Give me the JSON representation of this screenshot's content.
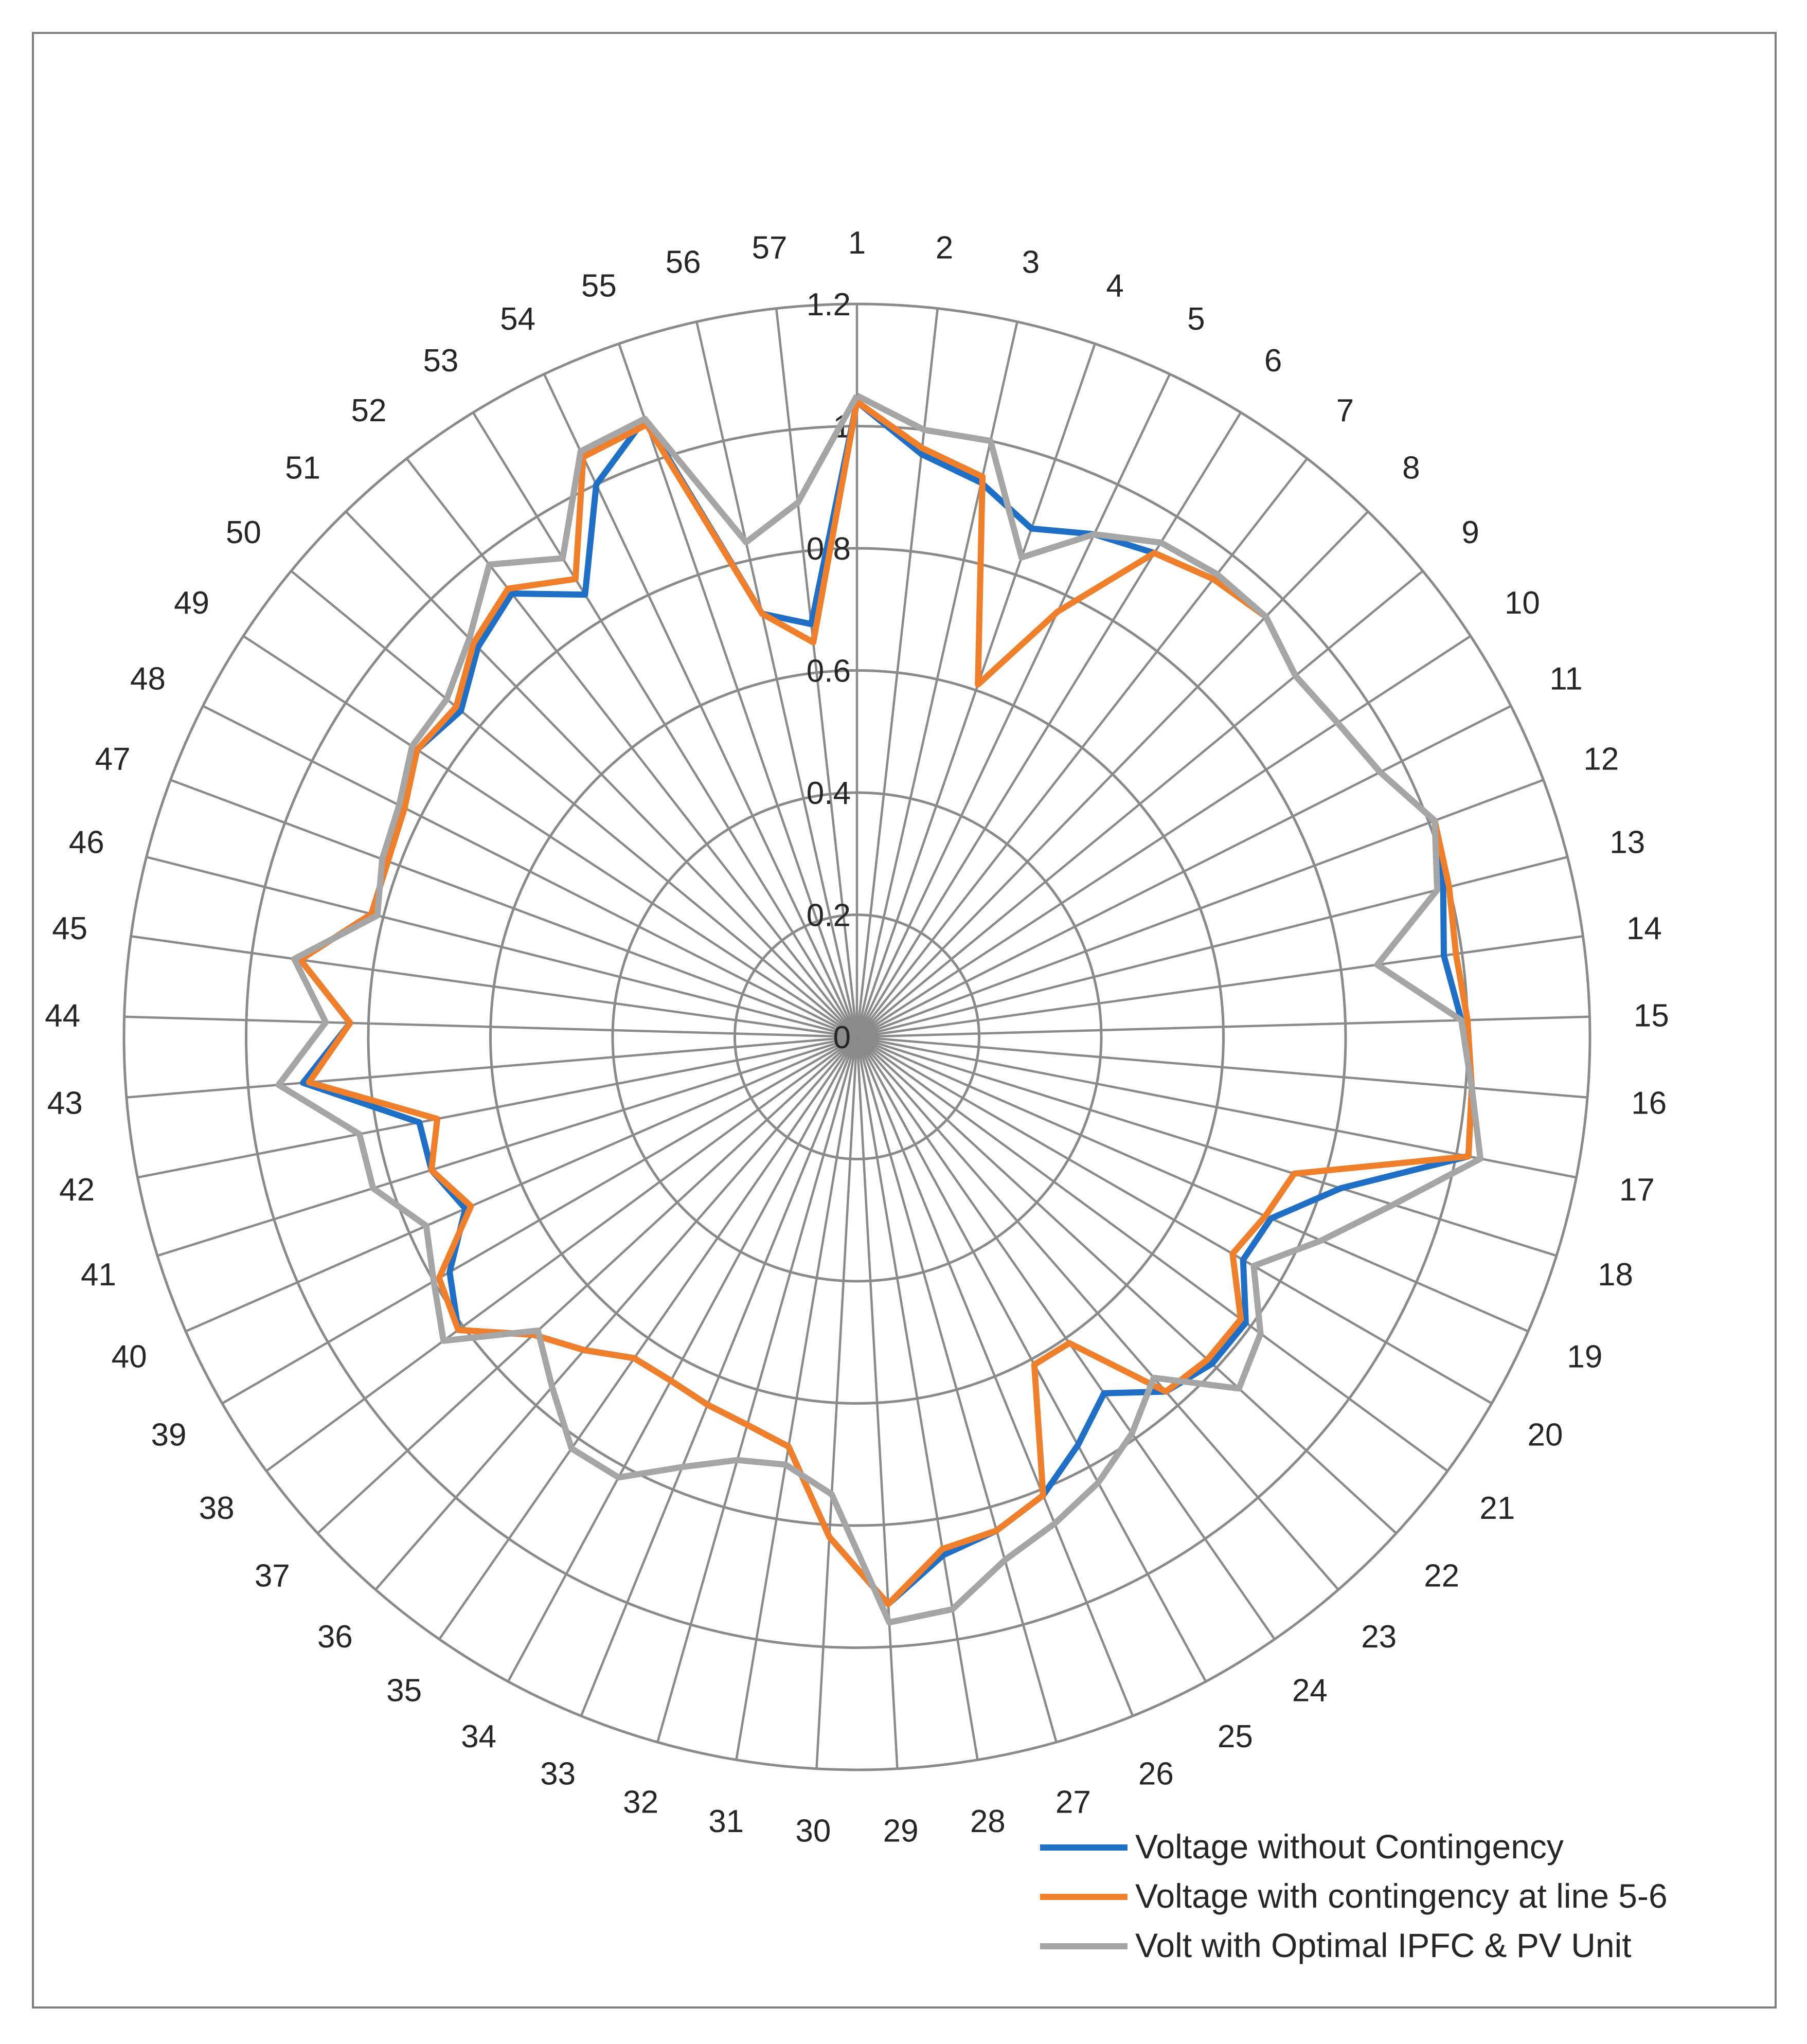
{
  "chart_data": {
    "type": "radar",
    "categories": [
      "1",
      "2",
      "3",
      "4",
      "5",
      "6",
      "7",
      "8",
      "9",
      "10",
      "11",
      "12",
      "13",
      "14",
      "15",
      "16",
      "17",
      "18",
      "19",
      "20",
      "21",
      "22",
      "23",
      "24",
      "25",
      "26",
      "27",
      "28",
      "29",
      "30",
      "31",
      "32",
      "33",
      "34",
      "35",
      "36",
      "37",
      "38",
      "39",
      "40",
      "41",
      "42",
      "43",
      "44",
      "45",
      "46",
      "47",
      "48",
      "49",
      "50",
      "51",
      "52",
      "53",
      "54",
      "55",
      "56",
      "57"
    ],
    "rlim": [
      0,
      1.2
    ],
    "rticks": [
      {
        "value": 0,
        "label": "0"
      },
      {
        "value": 0.2,
        "label": "0.2"
      },
      {
        "value": 0.4,
        "label": "0.4"
      },
      {
        "value": 0.6,
        "label": "0.6"
      },
      {
        "value": 0.8,
        "label": "0.8"
      },
      {
        "value": 1.0,
        "label": "1"
      },
      {
        "value": 1.2,
        "label": "1.2"
      }
    ],
    "grid": true,
    "legend_position": "bottom-right",
    "series": [
      {
        "name": "Voltage without Contingency",
        "color": "#1f6fc6",
        "values": [
          1.04,
          0.96,
          0.93,
          0.88,
          0.91,
          0.93,
          0.95,
          0.96,
          0.93,
          0.94,
          0.96,
          1.01,
          0.99,
          0.97,
          0.99,
          1.01,
          1.02,
          0.83,
          0.74,
          0.73,
          0.79,
          0.79,
          0.77,
          0.71,
          0.76,
          0.81,
          0.84,
          0.86,
          0.93,
          0.82,
          0.68,
          0.66,
          0.65,
          0.64,
          0.64,
          0.68,
          0.72,
          0.81,
          0.77,
          0.7,
          0.73,
          0.73,
          0.91,
          0.83,
          0.92,
          0.82,
          0.82,
          0.84,
          0.86,
          0.84,
          0.89,
          0.92,
          0.85,
          1.0,
          1.07,
          0.71,
          0.68
        ]
      },
      {
        "name": "Voltage with contingency at line 5-6",
        "color": "#f07f2c",
        "values": [
          1.04,
          0.97,
          0.94,
          0.61,
          0.77,
          0.93,
          0.95,
          0.96,
          0.93,
          0.94,
          0.96,
          1.01,
          1.0,
          0.99,
          1.0,
          1.01,
          1.02,
          0.75,
          0.73,
          0.71,
          0.78,
          0.78,
          0.77,
          0.61,
          0.61,
          0.81,
          0.84,
          0.85,
          0.93,
          0.82,
          0.68,
          0.66,
          0.65,
          0.64,
          0.64,
          0.68,
          0.72,
          0.81,
          0.79,
          0.69,
          0.73,
          0.7,
          0.9,
          0.83,
          0.92,
          0.82,
          0.82,
          0.83,
          0.86,
          0.85,
          0.9,
          0.93,
          0.88,
          1.05,
          1.06,
          0.71,
          0.65
        ]
      },
      {
        "name": "Volt with Optimal IPFC & PV Unit",
        "color": "#a5a5a5",
        "values": [
          1.05,
          1.0,
          1.0,
          0.83,
          0.91,
          0.95,
          0.96,
          0.96,
          0.93,
          0.94,
          0.96,
          1.01,
          0.98,
          0.86,
          0.99,
          1.01,
          1.04,
          0.92,
          0.83,
          0.75,
          0.82,
          0.85,
          0.74,
          0.79,
          0.83,
          0.86,
          0.89,
          0.95,
          0.96,
          0.75,
          0.71,
          0.72,
          0.76,
          0.82,
          0.82,
          0.76,
          0.71,
          0.84,
          0.8,
          0.77,
          0.83,
          0.83,
          0.95,
          0.87,
          0.93,
          0.81,
          0.83,
          0.84,
          0.87,
          0.87,
          0.91,
          0.98,
          0.92,
          1.06,
          1.07,
          0.83,
          0.88
        ]
      }
    ]
  }
}
